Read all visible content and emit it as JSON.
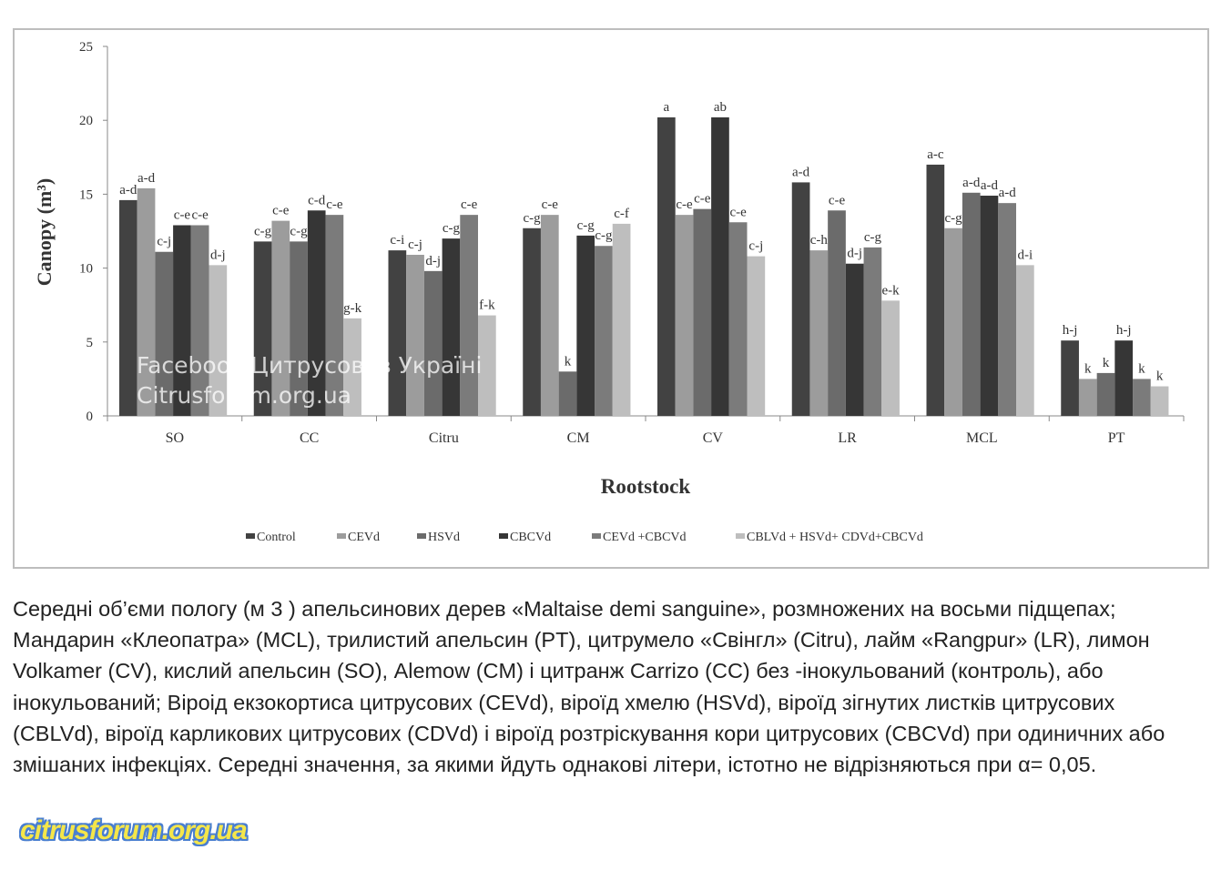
{
  "chart_data": {
    "type": "bar",
    "title": "",
    "xlabel": "Rootstock",
    "ylabel": "Canopy (m³)",
    "ylim": [
      0,
      25
    ],
    "yticks": [
      0,
      5,
      10,
      15,
      20,
      25
    ],
    "categories": [
      "SO",
      "CC",
      "Citru",
      "CM",
      "CV",
      "LR",
      "MCL",
      "PT"
    ],
    "series": [
      {
        "name": "Control",
        "color": "#424242",
        "values": [
          14.6,
          11.8,
          11.2,
          12.7,
          20.2,
          15.8,
          17.0,
          5.1
        ],
        "letters": [
          "a-d",
          "c-g",
          "c-i",
          "c-g",
          "a",
          "a-d",
          "a-c",
          "h-j"
        ]
      },
      {
        "name": "CEVd",
        "color": "#9c9c9c",
        "values": [
          15.4,
          13.2,
          10.9,
          13.6,
          13.6,
          11.2,
          12.7,
          2.5
        ],
        "letters": [
          "a-d",
          "c-e",
          "c-j",
          "c-e",
          "c-e",
          "c-h",
          "c-g",
          "k"
        ]
      },
      {
        "name": "HSVd",
        "color": "#6b6b6b",
        "values": [
          11.1,
          11.8,
          9.8,
          3.0,
          14.0,
          13.9,
          15.1,
          2.9
        ],
        "letters": [
          "c-j",
          "c-g",
          "d-j",
          "k",
          "c-e",
          "c-e",
          "a-d",
          "k"
        ]
      },
      {
        "name": "CBCVd",
        "color": "#363636",
        "values": [
          12.9,
          13.9,
          12.0,
          12.2,
          20.2,
          10.3,
          14.9,
          5.1
        ],
        "letters": [
          "c-e",
          "c-d",
          "c-g",
          "c-g",
          "ab",
          "d-j",
          "a-d",
          "h-j"
        ]
      },
      {
        "name": "CEVd +CBCVd",
        "color": "#7b7b7b",
        "values": [
          12.9,
          13.6,
          13.6,
          11.5,
          13.1,
          11.4,
          14.4,
          2.5
        ],
        "letters": [
          "c-e",
          "c-e",
          "c-e",
          "c-g",
          "c-e",
          "c-g",
          "a-d",
          "k"
        ]
      },
      {
        "name": "CBLVd + HSVd+ CDVd+CBCVd",
        "color": "#bebebe",
        "values": [
          10.2,
          6.6,
          6.8,
          13.0,
          10.8,
          7.8,
          10.2,
          2.0
        ],
        "letters": [
          "d-j",
          "g-k",
          "f-k",
          "c-f",
          "c-j",
          "e-k",
          "d-i",
          "k"
        ]
      }
    ],
    "grid": false,
    "legend_placement": "bottom",
    "watermark": [
      "Facebook Цитрусові в Україні",
      "Citrusforum.org.ua"
    ]
  },
  "caption": "Середні об’єми пологу (м 3 ) апельсинових дерев «Maltaise demi sanguine», розмножених на восьми підщепах; Мандарин «Клеопатра» (MCL), трилистий апельсин (PT), цитрумело «Свінгл» (Citru), лайм «Rangpur» (LR), лимон Volkamer (CV), кислий апельсин (SO), Alemow (CM) і цитранж Carrizo (CC) без -інокульований (контроль), або інокульований; Віроід екзокортиса цитрусових (CEVd), віроїд хмелю (HSVd), віроїд зігнутих листків цитрусових (CBLVd), віроїд карликових цитрусових (CDVd) і віроїд розтріскування кори цитрусових (CBCVd) при одиничних або змішаних інфекціях. Середні значення, за якими йдуть однакові літери, істотно не відрізняються при α= 0,05.",
  "logo": "citrusforum.org.ua"
}
